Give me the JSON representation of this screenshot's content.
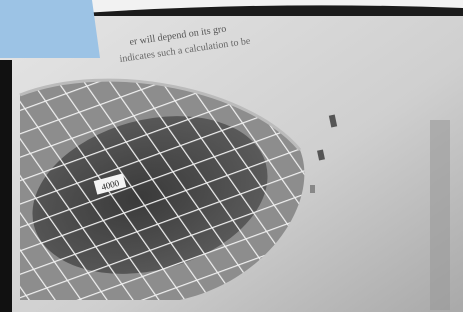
{
  "photo": {
    "caption_lines": [
      "er will depend on its gro",
      "indicates such a calculation to be"
    ],
    "grid_label": "4000"
  }
}
